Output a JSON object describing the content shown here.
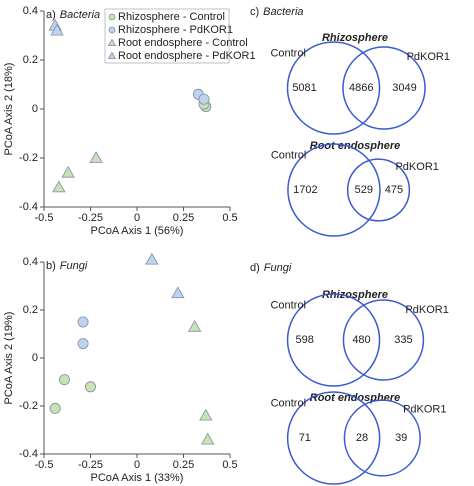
{
  "chart_data": [
    {
      "type": "scatter",
      "panel_label": "a)",
      "panel_title": "Bacteria",
      "xlabel": "PCoA Axis 1 (56%)",
      "ylabel": "PCoA Axis 2 (18%)",
      "xlim": [
        -0.5,
        0.5
      ],
      "xticks": [
        -0.5,
        -0.25,
        0,
        0.25,
        0.5
      ],
      "ylim": [
        -0.4,
        0.4
      ],
      "yticks": [
        -0.4,
        -0.2,
        0,
        0.2,
        0.4
      ],
      "legend": "top-right",
      "series": [
        {
          "name": "Rhizosphere - Control",
          "marker": "circle",
          "color": "#c9e2b3",
          "x": [
            0.37,
            0.36
          ],
          "y": [
            0.01,
            0.02
          ]
        },
        {
          "name": "Rhizosphere - PdKOR1",
          "marker": "circle",
          "color": "#bdd3ee",
          "x": [
            0.33,
            0.36
          ],
          "y": [
            0.06,
            0.04
          ]
        },
        {
          "name": "Root endosphere - Control",
          "marker": "triangle",
          "color": "#c9e2b3",
          "x": [
            -0.22,
            -0.37,
            -0.42
          ],
          "y": [
            -0.2,
            -0.26,
            -0.32
          ]
        },
        {
          "name": "Root endosphere - PdKOR1",
          "marker": "triangle",
          "color": "#bdd3ee",
          "x": [
            -0.44,
            -0.43
          ],
          "y": [
            0.34,
            0.32
          ]
        }
      ]
    },
    {
      "type": "scatter",
      "panel_label": "b)",
      "panel_title": "Fungi",
      "xlabel": "PCoA Axis 1 (33%)",
      "ylabel": "PCoA Axis 2 (19%)",
      "xlim": [
        -0.5,
        0.5
      ],
      "xticks": [
        -0.5,
        -0.25,
        0,
        0.25,
        0.5
      ],
      "ylim": [
        -0.4,
        0.4
      ],
      "yticks": [
        -0.4,
        -0.2,
        0,
        0.2,
        0.4
      ],
      "series": [
        {
          "marker": "circle",
          "color": "#c9e2b3",
          "x": [
            -0.39,
            -0.25,
            -0.44
          ],
          "y": [
            -0.09,
            -0.12,
            -0.21
          ]
        },
        {
          "marker": "circle",
          "color": "#bdd3ee",
          "x": [
            -0.29,
            -0.29
          ],
          "y": [
            0.15,
            0.06
          ]
        },
        {
          "marker": "triangle",
          "color": "#c9e2b3",
          "x": [
            0.31,
            0.37,
            0.38
          ],
          "y": [
            0.13,
            -0.24,
            -0.34
          ]
        },
        {
          "marker": "triangle",
          "color": "#bdd3ee",
          "x": [
            0.08,
            0.22
          ],
          "y": [
            0.41,
            0.27
          ]
        }
      ]
    },
    {
      "type": "venn",
      "panel_label": "c)",
      "panel_title": "Bacteria",
      "title": "Rhizosphere",
      "sets": [
        "Control",
        "PdKOR1"
      ],
      "values": [
        5081,
        4866,
        3049
      ],
      "color": "#3a5bd0"
    },
    {
      "type": "venn",
      "title": "Root endosphere",
      "sets": [
        "Control",
        "PdKOR1"
      ],
      "values": [
        1702,
        529,
        475
      ],
      "color": "#3a5bd0"
    },
    {
      "type": "venn",
      "panel_label": "d)",
      "panel_title": "Fungi",
      "title": "Rhizosphere",
      "sets": [
        "Control",
        "PdKOR1"
      ],
      "values": [
        598,
        480,
        335
      ],
      "color": "#3a5bd0"
    },
    {
      "type": "venn",
      "title": "Root endosphere",
      "sets": [
        "Control",
        "PdKOR1"
      ],
      "values": [
        71,
        28,
        39
      ],
      "color": "#3a5bd0"
    }
  ]
}
